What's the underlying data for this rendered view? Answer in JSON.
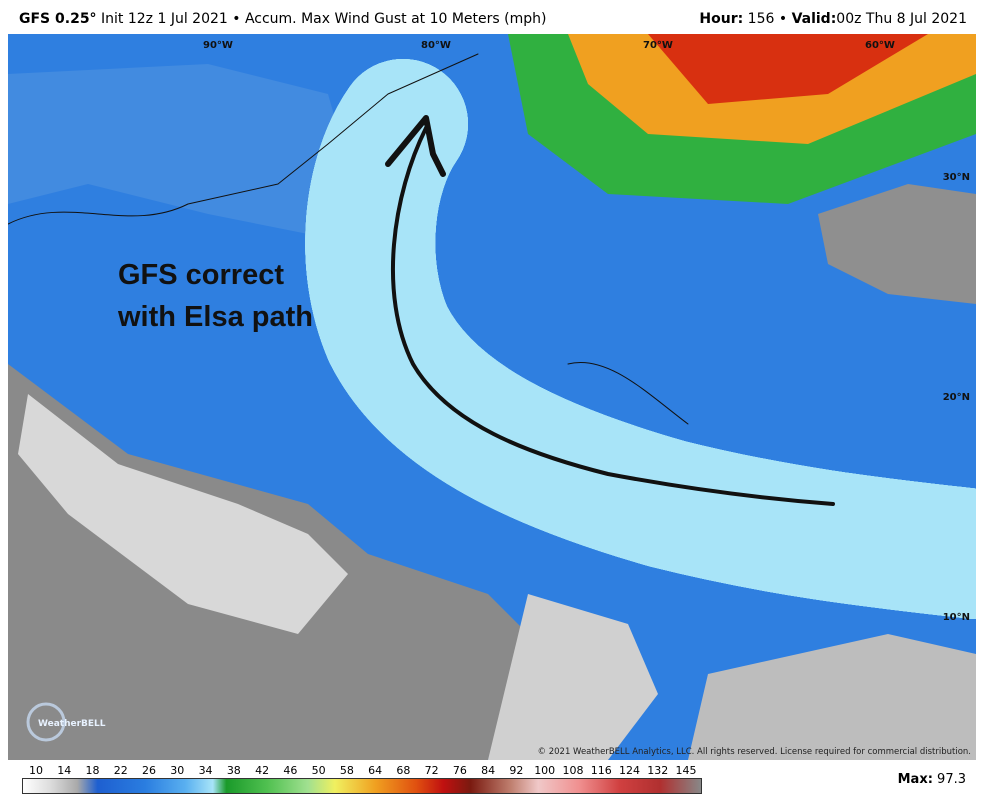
{
  "header": {
    "model": "GFS 0.25°",
    "description": "Init 12z 1 Jul 2021 • Accum. Max Wind Gust at 10 Meters (mph)",
    "hour_label": "Hour:",
    "hour": "156 •",
    "valid_label": "Valid:",
    "valid": "00z Thu 8 Jul 2021"
  },
  "map": {
    "longitudes": [
      "90°W",
      "80°W",
      "70°W",
      "60°W"
    ],
    "latitudes": [
      "30°N",
      "20°N",
      "10°N"
    ],
    "annotation": [
      "GFS correct",
      "with Elsa path"
    ],
    "logo": "WeatherBELL",
    "copyright": "© 2021 WeatherBELL Analytics, LLC. All rights reserved. License required for commercial distribution."
  },
  "colorbar": {
    "labels": [
      10,
      14,
      18,
      22,
      26,
      30,
      34,
      38,
      42,
      46,
      50,
      58,
      64,
      68,
      72,
      76,
      84,
      92,
      100,
      108,
      116,
      124,
      132,
      145
    ]
  },
  "max": {
    "label": "Max:",
    "value": 97.3
  }
}
